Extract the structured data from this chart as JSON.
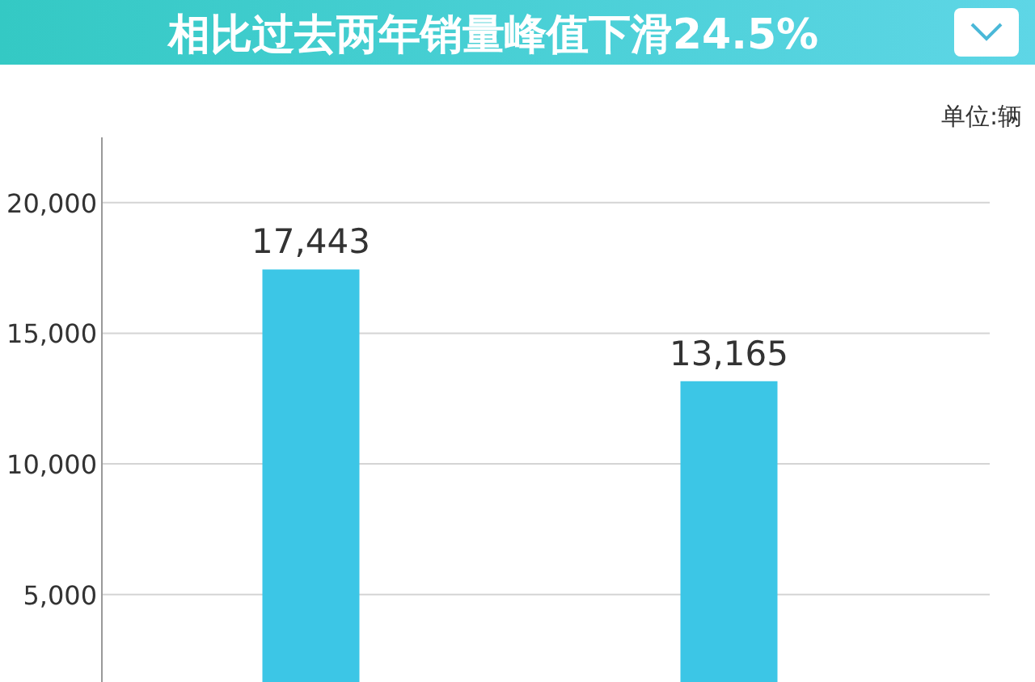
{
  "chart_data": {
    "type": "bar",
    "title": "相比过去两年销量峰值下滑24.5%",
    "annotations": [
      "单位:辆"
    ],
    "categories": [
      null,
      null
    ],
    "values": [
      17443,
      13165
    ],
    "value_labels": [
      "17,443",
      "13,165"
    ],
    "color": "#3cc6e6",
    "ylim": [
      1650,
      22500
    ],
    "yticks": [
      {
        "value": 5000,
        "label": "5,000"
      },
      {
        "value": 10000,
        "label": "10,000"
      },
      {
        "value": 15000,
        "label": "15,000"
      },
      {
        "value": 20000,
        "label": "20,000"
      }
    ],
    "grid": "y"
  }
}
